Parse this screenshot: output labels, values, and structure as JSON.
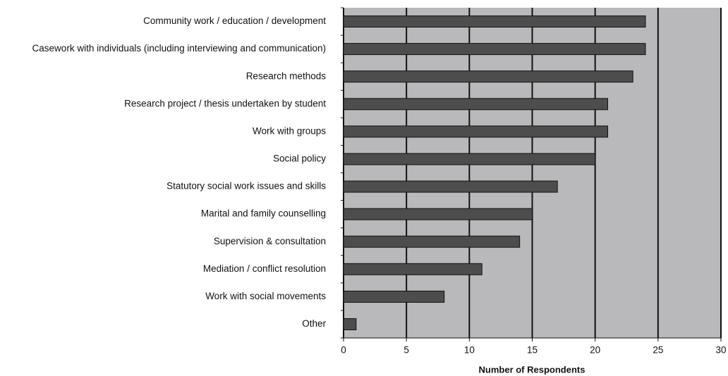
{
  "chart_data": {
    "type": "bar",
    "orientation": "horizontal",
    "x_label": "Number of Respondents",
    "categories": [
      "Community work / education / development",
      "Casework with individuals (including interviewing and communication)",
      "Research methods",
      "Research project / thesis undertaken by student",
      "Work with groups",
      "Social policy",
      "Statutory social work issues and skills",
      "Marital and family counselling",
      "Supervision & consultation",
      "Mediation / conflict resolution",
      "Work with social movements",
      "Other"
    ],
    "values": [
      24,
      24,
      23,
      21,
      21,
      20,
      17,
      15,
      14,
      11,
      8,
      1
    ],
    "color": "#4d4d4d",
    "background": "#b9b9bb",
    "xlim": [
      0,
      30
    ],
    "xticks": [
      0,
      5,
      10,
      15,
      20,
      25,
      30
    ],
    "grid": true
  }
}
